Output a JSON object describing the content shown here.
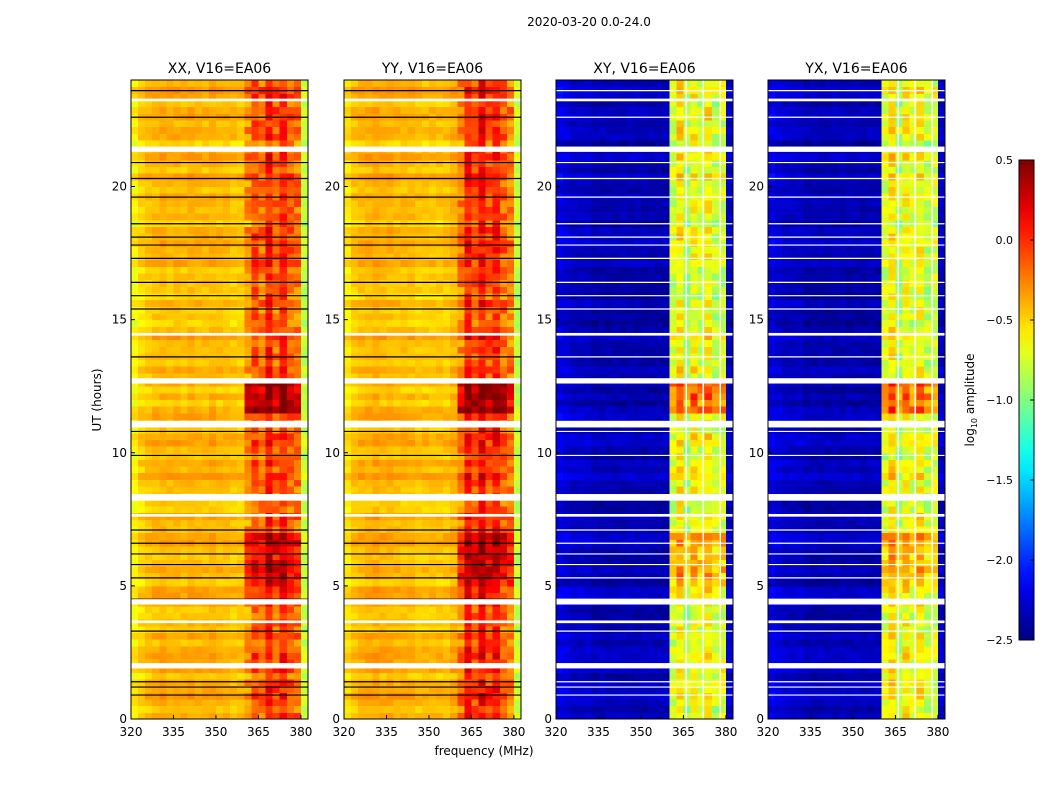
{
  "chart_data": {
    "type": "heatmap",
    "title": "2020-03-20 0.0-24.0",
    "xlabel": "frequency (MHz)",
    "ylabel": "UT (hours)",
    "xlim": [
      320,
      382.5
    ],
    "ylim": [
      0,
      24
    ],
    "xticks": [
      "320",
      "335",
      "350",
      "365",
      "380"
    ],
    "yticks": [
      "0",
      "5",
      "10",
      "15",
      "20"
    ],
    "freq_bin_mhz": 2.5,
    "time_bin_hours": 0.25,
    "colorbar": {
      "label_main": "log",
      "label_sub": "10",
      "label_rest": " amplitude",
      "range": [
        -2.5,
        0.5
      ],
      "ticks": [
        "0.5",
        "0.0",
        "−0.5",
        "−1.0",
        "−1.5",
        "−2.0",
        "−2.5"
      ],
      "colormap": "jet"
    },
    "panels": [
      {
        "title": "XX, V16=EA06",
        "profile": [
          -0.6,
          -0.5,
          -0.45,
          -0.42,
          -0.4,
          -0.42,
          -0.4,
          -0.42,
          -0.4,
          -0.42,
          -0.42,
          -0.4,
          -0.42,
          -0.42,
          -0.45,
          -0.45,
          -0.3,
          -0.1,
          -0.2,
          0.05,
          -0.15,
          0.0,
          -0.15,
          -0.2,
          -0.8
        ],
        "vlines": []
      },
      {
        "title": "YY, V16=EA06",
        "profile": [
          -0.55,
          -0.45,
          -0.42,
          -0.4,
          -0.38,
          -0.4,
          -0.4,
          -0.42,
          -0.42,
          -0.42,
          -0.45,
          -0.45,
          -0.45,
          -0.45,
          -0.45,
          -0.4,
          -0.25,
          0.05,
          -0.1,
          0.1,
          -0.1,
          0.05,
          -0.15,
          -0.25,
          -0.8
        ],
        "vlines": []
      },
      {
        "title": "XY, V16=EA06",
        "profile": [
          -2.2,
          -2.25,
          -2.3,
          -2.3,
          -2.3,
          -2.35,
          -2.35,
          -2.35,
          -2.35,
          -2.35,
          -2.35,
          -2.35,
          -2.35,
          -2.35,
          -2.35,
          -2.35,
          -0.75,
          -0.55,
          -0.85,
          -0.6,
          -0.75,
          -0.6,
          -0.8,
          -0.75,
          -2.3
        ],
        "vlines": [
          366,
          372,
          378
        ]
      },
      {
        "title": "YX, V16=EA06",
        "profile": [
          -2.2,
          -2.25,
          -2.3,
          -2.3,
          -2.3,
          -2.35,
          -2.35,
          -2.35,
          -2.35,
          -2.35,
          -2.35,
          -2.35,
          -2.35,
          -2.35,
          -2.35,
          -2.35,
          -0.75,
          -0.55,
          -0.85,
          -0.6,
          -0.75,
          -0.6,
          -0.8,
          -0.75,
          -2.3
        ],
        "vlines": [
          366,
          372,
          378
        ]
      }
    ],
    "band_boost_hours": [
      [
        11.3,
        12.6,
        0.5
      ],
      [
        5.0,
        6.8,
        0.3
      ],
      [
        0.8,
        1.0,
        0.4
      ]
    ],
    "flagged_hours": [
      [
        1.9,
        2.1
      ],
      [
        3.6,
        3.7
      ],
      [
        4.3,
        4.5
      ],
      [
        7.6,
        7.7
      ],
      [
        8.2,
        8.45
      ],
      [
        10.95,
        11.2
      ],
      [
        12.6,
        12.8
      ],
      [
        14.4,
        14.5
      ],
      [
        21.3,
        21.5
      ],
      [
        23.2,
        23.3
      ]
    ],
    "dropout_hours": [
      0.9,
      1.2,
      1.4,
      3.3,
      4.5,
      5.3,
      5.8,
      6.2,
      6.6,
      7.1,
      9.9,
      10.8,
      12.75,
      13.6,
      15.4,
      15.9,
      16.4,
      17.3,
      17.8,
      18.1,
      18.6,
      19.6,
      20.3,
      20.9,
      22.6,
      23.6
    ]
  }
}
